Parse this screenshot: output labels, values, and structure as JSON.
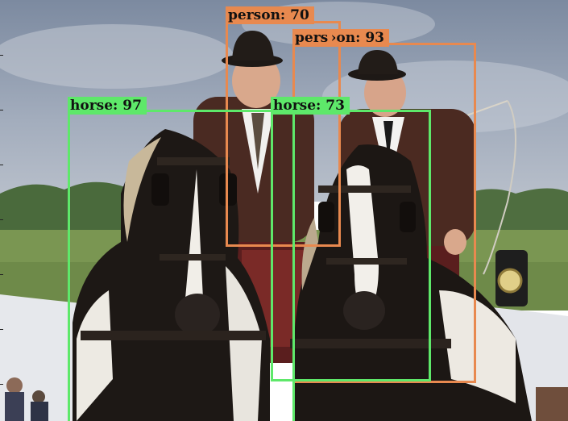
{
  "detections": [
    {
      "name": "person-detection-1",
      "label": "person: 70",
      "color": "#E8894F"
    },
    {
      "name": "person-detection-2",
      "label": "pers ›on: 93",
      "color": "#E8894F"
    },
    {
      "name": "horse-detection-1",
      "label": "horse: 97",
      "color": "#5EE86A"
    },
    {
      "name": "horse-detection-2",
      "label": "horse: 73",
      "color": "#5EE86A"
    }
  ],
  "colors": {
    "sky": "#8A99AE",
    "trees": "#4E6A3E",
    "grass": "#7E9A56",
    "tent": "#E4E6EA",
    "horse_dark": "#1D1815",
    "horse_white": "#EDEAE3",
    "jacket": "#4A2A20",
    "hat": "#1F1A17"
  }
}
